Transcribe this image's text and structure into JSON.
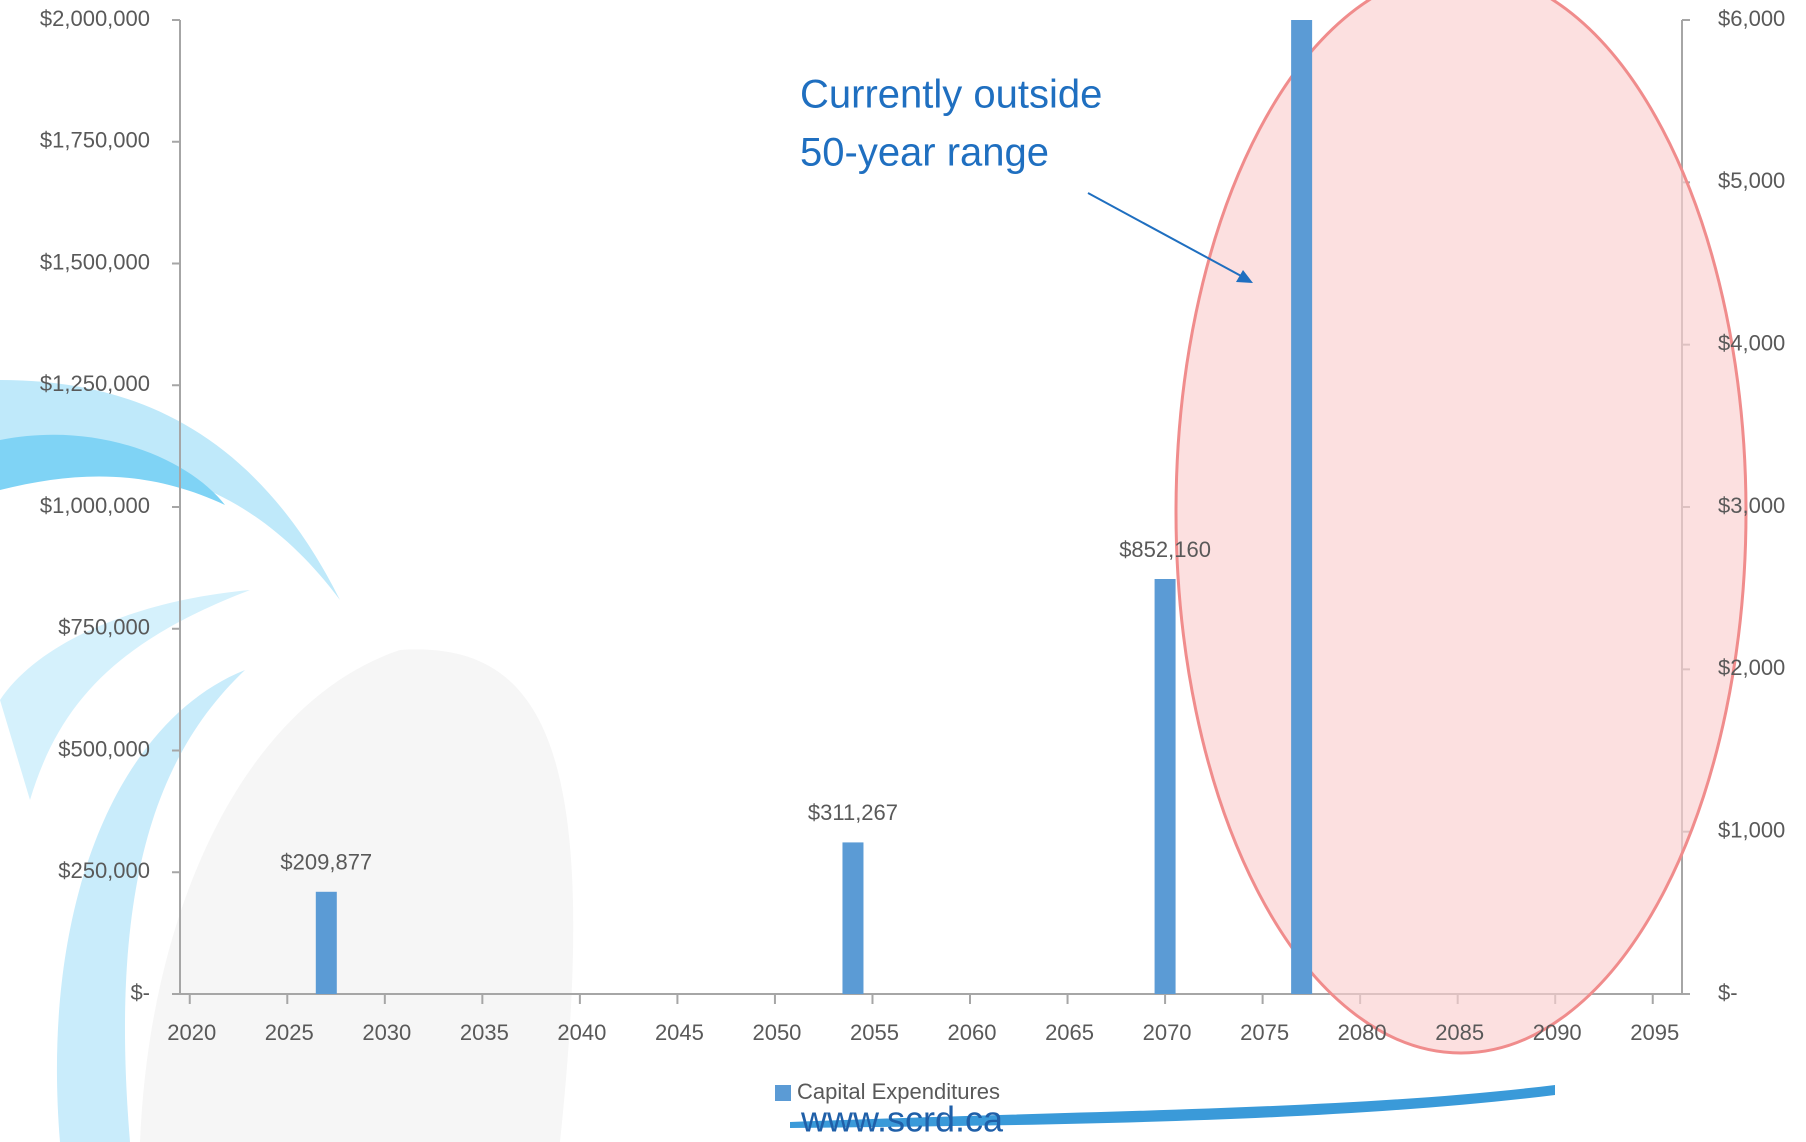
{
  "chart_data": {
    "type": "bar",
    "x": [
      2027,
      2054,
      2070,
      2077
    ],
    "series": [
      {
        "name": "Capital Expenditures",
        "color": "#5b9bd5",
        "values": [
          209877,
          311267,
          852160,
          2000000
        ],
        "value_labels": [
          "$209,877",
          "$311,267",
          "$852,160",
          null
        ]
      }
    ],
    "xlim": [
      2019.5,
      2096.5
    ],
    "xticks": [
      2020,
      2025,
      2030,
      2035,
      2040,
      2045,
      2050,
      2055,
      2060,
      2065,
      2070,
      2075,
      2080,
      2085,
      2090,
      2095
    ],
    "ylim": [
      0,
      2000000
    ],
    "yticks": [
      {
        "value": 0,
        "label": "$-"
      },
      {
        "value": 250000,
        "label": "$250,000"
      },
      {
        "value": 500000,
        "label": "$500,000"
      },
      {
        "value": 750000,
        "label": "$750,000"
      },
      {
        "value": 1000000,
        "label": "$1,000,000"
      },
      {
        "value": 1250000,
        "label": "$1,250,000"
      },
      {
        "value": 1500000,
        "label": "$1,500,000"
      },
      {
        "value": 1750000,
        "label": "$1,750,000"
      },
      {
        "value": 2000000,
        "label": "$2,000,000"
      }
    ],
    "y2lim": [
      0,
      6000
    ],
    "y2ticks": [
      {
        "value": 0,
        "label": "$-"
      },
      {
        "value": 1000,
        "label": "$1,000"
      },
      {
        "value": 2000,
        "label": "$2,000"
      },
      {
        "value": 3000,
        "label": "$3,000"
      },
      {
        "value": 4000,
        "label": "$4,000"
      },
      {
        "value": 5000,
        "label": "$5,000"
      },
      {
        "value": 6000,
        "label": "$6,000"
      }
    ],
    "annotation": [
      "Currently outside",
      "50-year range"
    ],
    "legend": "bottom"
  },
  "footer": "www.scrd.ca"
}
